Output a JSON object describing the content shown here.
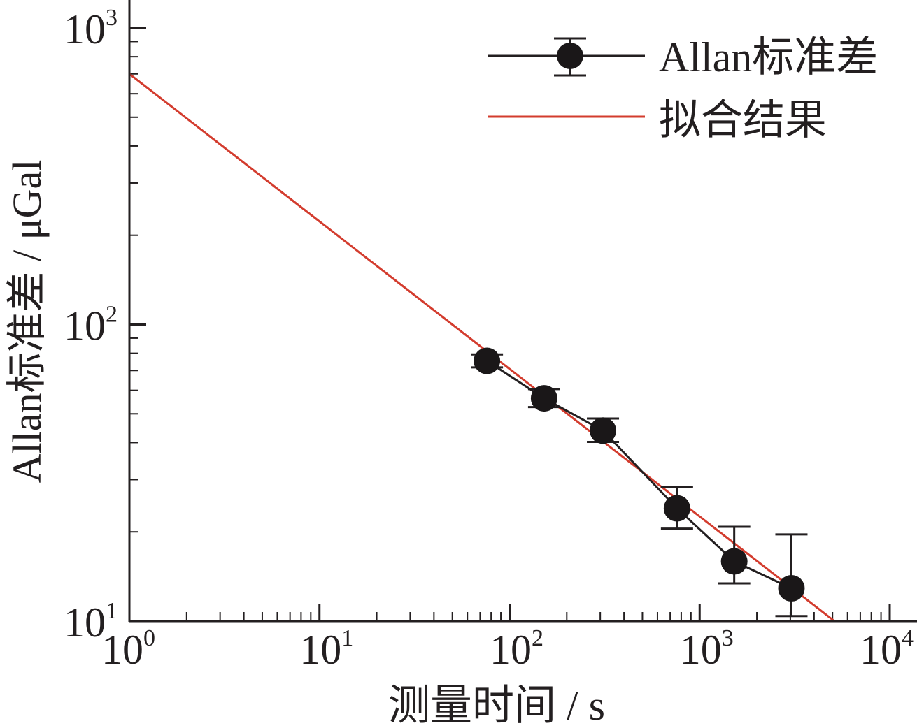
{
  "chart_data": {
    "type": "line",
    "x_scale": "log",
    "y_scale": "log",
    "xlabel": "测量时间 / s",
    "ylabel": "Allan标准差 / μGal",
    "xlim": [
      1,
      10000
    ],
    "ylim": [
      10,
      1000
    ],
    "x_ticks": [
      {
        "base": "10",
        "exp": "0",
        "value": 1
      },
      {
        "base": "10",
        "exp": "1",
        "value": 10
      },
      {
        "base": "10",
        "exp": "2",
        "value": 100
      },
      {
        "base": "10",
        "exp": "3",
        "value": 1000
      },
      {
        "base": "10",
        "exp": "4",
        "value": 10000
      }
    ],
    "y_ticks": [
      {
        "base": "10",
        "exp": "1",
        "value": 10
      },
      {
        "base": "10",
        "exp": "2",
        "value": 100
      },
      {
        "base": "10",
        "exp": "3",
        "value": 1000
      }
    ],
    "legend_position": "top-right",
    "series": [
      {
        "name": "Allan标准差",
        "color": "#231f20",
        "marker": "circle",
        "points": [
          {
            "x": 76,
            "y": 75.4,
            "err_low": 71.7,
            "err_high": 79.3
          },
          {
            "x": 152,
            "y": 56.4,
            "err_low": 52.7,
            "err_high": 60.6
          },
          {
            "x": 310,
            "y": 43.9,
            "err_low": 40.2,
            "err_high": 48.2
          },
          {
            "x": 760,
            "y": 24.0,
            "err_low": 20.5,
            "err_high": 28.4
          },
          {
            "x": 1520,
            "y": 15.9,
            "err_low": 13.4,
            "err_high": 20.8
          },
          {
            "x": 3040,
            "y": 12.9,
            "err_low": 10.4,
            "err_high": 19.6
          }
        ]
      },
      {
        "name": "拟合结果",
        "color": "#d33c2e",
        "line_points": [
          {
            "x": 1,
            "y": 700
          },
          {
            "x": 5120,
            "y": 10
          }
        ]
      }
    ]
  }
}
